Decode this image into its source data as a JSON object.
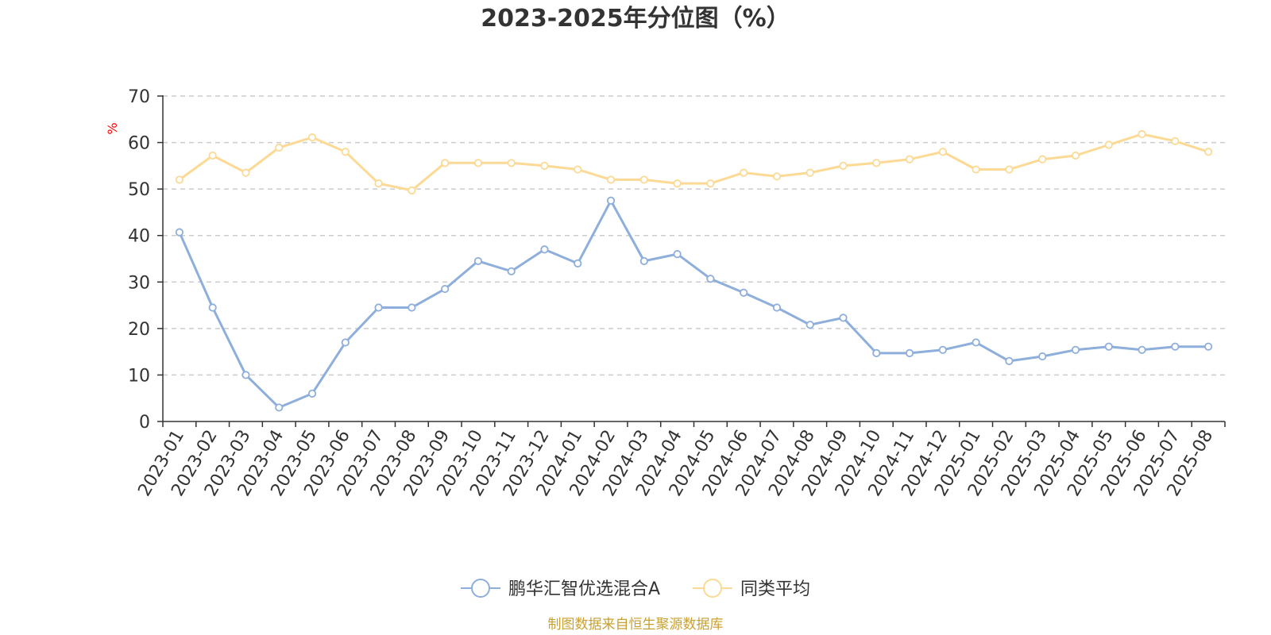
{
  "chart_data": {
    "type": "line",
    "title": "2023-2025年分位图（%）",
    "ylabel": "%",
    "xlabel": "",
    "ylim": [
      0,
      70
    ],
    "yticks": [
      0,
      10,
      20,
      30,
      40,
      50,
      60,
      70
    ],
    "grid": true,
    "legend_position": "bottom",
    "categories": [
      "2023-01",
      "2023-02",
      "2023-03",
      "2023-04",
      "2023-05",
      "2023-06",
      "2023-07",
      "2023-08",
      "2023-09",
      "2023-10",
      "2023-11",
      "2023-12",
      "2024-01",
      "2024-02",
      "2024-03",
      "2024-04",
      "2024-05",
      "2024-06",
      "2024-07",
      "2024-08",
      "2024-09",
      "2024-10",
      "2024-11",
      "2024-12",
      "2025-01",
      "2025-02",
      "2025-03",
      "2025-04",
      "2025-05",
      "2025-06",
      "2025-07",
      "2025-08"
    ],
    "series": [
      {
        "name": "鹏华汇智优选混合A",
        "color": "#8eaedb",
        "values": [
          40.7,
          24.5,
          10,
          3,
          6,
          17,
          24.5,
          24.5,
          28.5,
          34.5,
          32.3,
          37,
          34,
          47.5,
          34.5,
          36,
          30.7,
          27.7,
          24.5,
          20.8,
          22.3,
          14.7,
          14.7,
          15.4,
          17,
          13,
          14,
          15.4,
          16.1,
          15.4,
          16.1,
          16.1
        ]
      },
      {
        "name": "同类平均",
        "color": "#fcd994",
        "values": [
          52,
          57.2,
          53.5,
          58.9,
          61.1,
          58,
          51.2,
          49.7,
          55.6,
          55.6,
          55.6,
          55,
          54.2,
          52,
          52,
          51.2,
          51.2,
          53.5,
          52.7,
          53.5,
          55,
          55.6,
          56.4,
          58,
          54.2,
          54.2,
          56.4,
          57.2,
          59.5,
          61.8,
          60.3,
          58
        ]
      }
    ],
    "source": "制图数据来自恒生聚源数据库",
    "colors": {
      "axis": "#333333",
      "grid": "#cccccc",
      "unit": "#ff0000",
      "source": "#c9a032"
    }
  }
}
